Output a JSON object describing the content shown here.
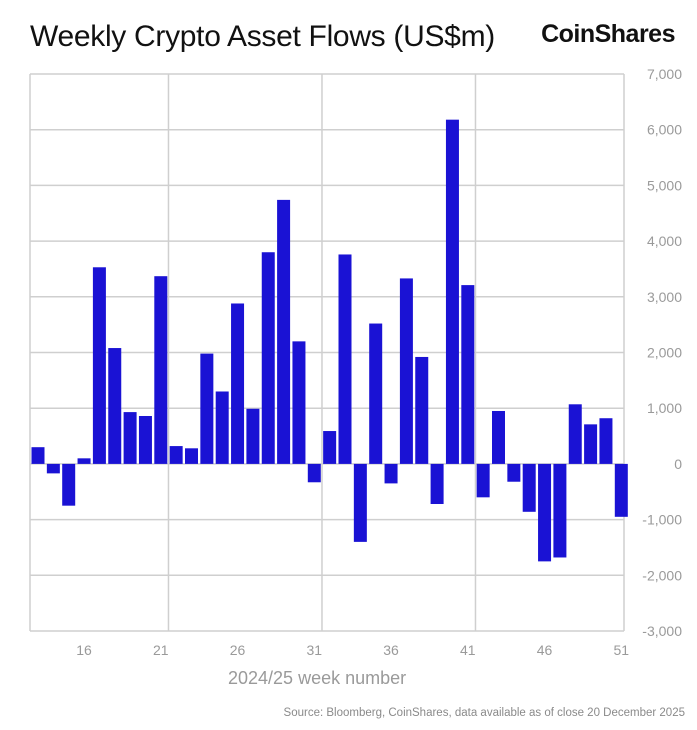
{
  "title": "Weekly Crypto Asset Flows (US$m)",
  "logo": "CoinShares",
  "source": "Source: Bloomberg, CoinShares, data available as of close 20 December 2025",
  "chart_data": {
    "type": "bar",
    "title": "Weekly Crypto Asset Flows (US$m)",
    "xlabel": "2024/25 week number",
    "ylabel": "",
    "ylim": [
      -3000,
      7000
    ],
    "yticks": [
      7000,
      6000,
      5000,
      4000,
      3000,
      2000,
      1000,
      0,
      -1000,
      -2000,
      -3000
    ],
    "ytick_labels": [
      "7,000",
      "6,000",
      "5,000",
      "4,000",
      "3,000",
      "2,000",
      "1,000",
      "0",
      "-1,000",
      "-2,000",
      "-3,000"
    ],
    "xticks": [
      16,
      21,
      26,
      31,
      36,
      41,
      46,
      51
    ],
    "grid": true,
    "bar_color": "#1a12d4",
    "categories": [
      13,
      14,
      15,
      16,
      17,
      18,
      19,
      20,
      21,
      22,
      23,
      24,
      25,
      26,
      27,
      28,
      29,
      30,
      31,
      32,
      33,
      34,
      35,
      36,
      37,
      38,
      39,
      40,
      41,
      42,
      43,
      44,
      45,
      46,
      47,
      48,
      49,
      50,
      51
    ],
    "values": [
      300,
      -170,
      -750,
      100,
      3530,
      2080,
      930,
      860,
      3370,
      320,
      280,
      1980,
      1300,
      2880,
      990,
      3800,
      4740,
      2200,
      -330,
      590,
      3760,
      -1400,
      2520,
      -350,
      3330,
      1920,
      -720,
      6180,
      3210,
      -600,
      950,
      -320,
      -860,
      -1750,
      -1680,
      1070,
      710,
      820,
      -950
    ]
  }
}
